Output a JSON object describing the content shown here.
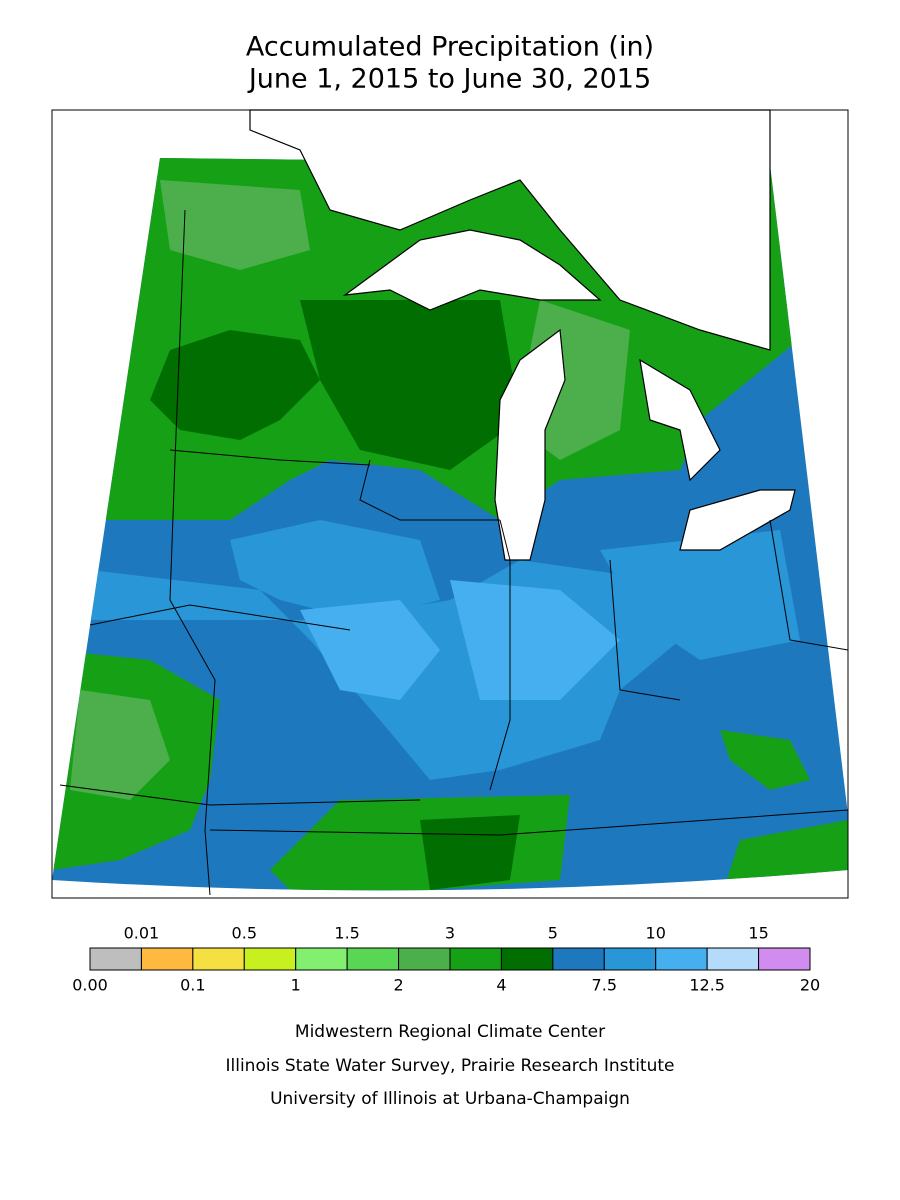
{
  "title": [
    "Accumulated Precipitation (in)",
    "June 1, 2015 to June 30, 2015"
  ],
  "legend": {
    "bounds": [
      {
        "value": 0,
        "label": "0.00"
      },
      0.01,
      0.1,
      0.5,
      1,
      1.5,
      2,
      3,
      4,
      5,
      7.5,
      10,
      12.5,
      15,
      20
    ],
    "colors": [
      "#bebebe",
      "#ffb93f",
      "#f5e042",
      "#c8f01e",
      "#82ef6e",
      "#5ad655",
      "#4caf4c",
      "#16a016",
      "#006e00",
      "#1e78be",
      "#2896d7",
      "#46aff0",
      "#b4dcfa",
      "#d28cf0"
    ]
  },
  "footer": [
    "Midwestern Regional Climate Center",
    "Illinois State Water Survey, Prairie Research Institute",
    "University of Illinois at Urbana-Champaign"
  ]
}
